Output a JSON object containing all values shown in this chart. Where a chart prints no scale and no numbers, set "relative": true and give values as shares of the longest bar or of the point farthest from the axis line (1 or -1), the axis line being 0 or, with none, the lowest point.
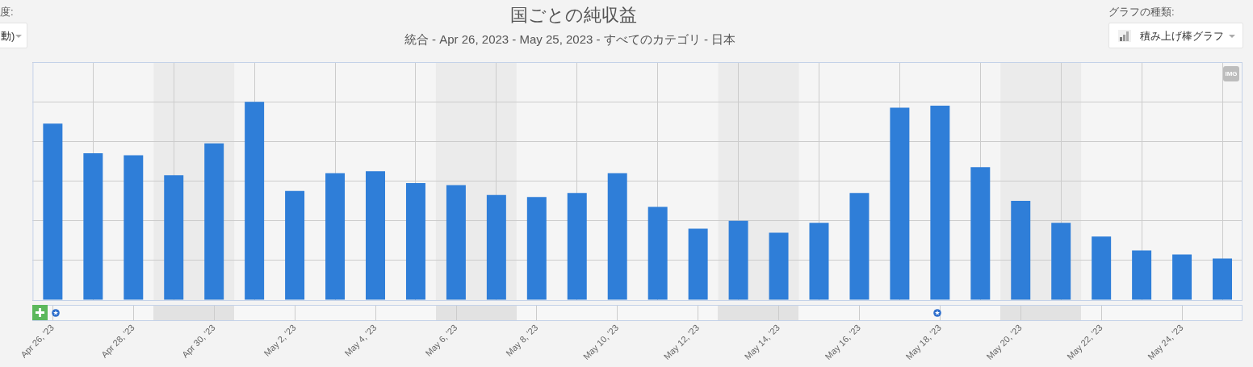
{
  "chart_data": {
    "type": "bar",
    "title": "国ごとの純収益",
    "subtitle": "統合 - Apr 26, 2023 - May 25, 2023 - すべてのカテゴリ - 日本",
    "relative": true,
    "x": [
      "2023-04-26",
      "2023-04-27",
      "2023-04-28",
      "2023-04-29",
      "2023-04-30",
      "2023-05-01",
      "2023-05-02",
      "2023-05-03",
      "2023-05-04",
      "2023-05-05",
      "2023-05-06",
      "2023-05-07",
      "2023-05-08",
      "2023-05-09",
      "2023-05-10",
      "2023-05-11",
      "2023-05-12",
      "2023-05-13",
      "2023-05-14",
      "2023-05-15",
      "2023-05-16",
      "2023-05-17",
      "2023-05-18",
      "2023-05-19",
      "2023-05-20",
      "2023-05-21",
      "2023-05-22",
      "2023-05-23",
      "2023-05-24",
      "2023-05-25"
    ],
    "values": [
      0.89,
      0.74,
      0.73,
      0.63,
      0.79,
      1,
      0.55,
      0.64,
      0.65,
      0.59,
      0.58,
      0.53,
      0.52,
      0.54,
      0.64,
      0.47,
      0.36,
      0.4,
      0.34,
      0.39,
      0.54,
      0.97,
      0.98,
      0.67,
      0.5,
      0.39,
      0.32,
      0.25,
      0.23,
      0.21
    ],
    "color": "#2f7ed8",
    "xlim": [
      "2023-04-25T12:00",
      "2023-05-25T12:00"
    ],
    "xticks": [
      {
        "value": "2023-04-26",
        "label": "Apr 26, '23"
      },
      {
        "value": "2023-04-28",
        "label": "Apr 28, '23"
      },
      {
        "value": "2023-04-30",
        "label": "Apr 30, '23"
      },
      {
        "value": "2023-05-02",
        "label": "May 2, '23"
      },
      {
        "value": "2023-05-04",
        "label": "May 4, '23"
      },
      {
        "value": "2023-05-06",
        "label": "May 6, '23"
      },
      {
        "value": "2023-05-08",
        "label": "May 8, '23"
      },
      {
        "value": "2023-05-10",
        "label": "May 10, '23"
      },
      {
        "value": "2023-05-12",
        "label": "May 12, '23"
      },
      {
        "value": "2023-05-14",
        "label": "May 14, '23"
      },
      {
        "value": "2023-05-16",
        "label": "May 16, '23"
      },
      {
        "value": "2023-05-18",
        "label": "May 18, '23"
      },
      {
        "value": "2023-05-20",
        "label": "May 20, '23"
      },
      {
        "value": "2023-05-22",
        "label": "May 22, '23"
      },
      {
        "value": "2023-05-24",
        "label": "May 24, '23"
      }
    ],
    "bands": [
      {
        "axis": "x",
        "from": "2023-04-28T12:00",
        "to": "2023-04-30T12:00",
        "color": "#ebebeb"
      },
      {
        "axis": "x",
        "from": "2023-05-05T12:00",
        "to": "2023-05-07T12:00",
        "color": "#ebebeb"
      },
      {
        "axis": "x",
        "from": "2023-05-12T12:00",
        "to": "2023-05-14T12:00",
        "color": "#ebebeb"
      },
      {
        "axis": "x",
        "from": "2023-05-19T12:00",
        "to": "2023-05-21T12:00",
        "color": "#ebebeb"
      }
    ],
    "grid": true,
    "annotations": [
      "度:",
      "動)",
      "グラフの種類:",
      "積み上げ棒グラフ",
      "IMG"
    ]
  }
}
